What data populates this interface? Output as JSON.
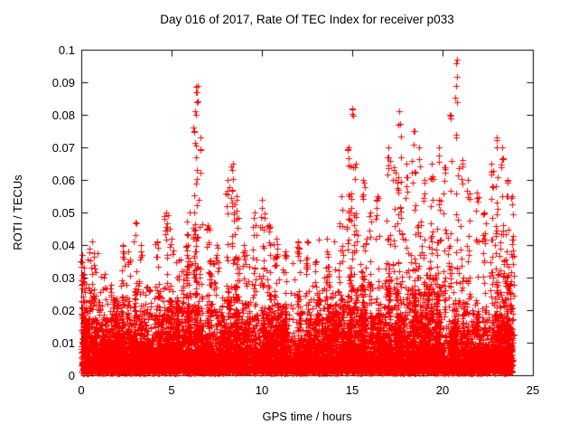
{
  "chart_data": {
    "type": "scatter",
    "title": "Day 016 of 2017, Rate Of TEC Index for receiver p033",
    "xlabel": "GPS time / hours",
    "ylabel": "ROTI / TECUs",
    "xlim": [
      0,
      25
    ],
    "ylim": [
      0,
      0.1
    ],
    "x_ticks": [
      0,
      5,
      10,
      15,
      20,
      25
    ],
    "y_ticks": [
      0,
      0.01,
      0.02,
      0.03,
      0.04,
      0.05,
      0.06,
      0.07,
      0.08,
      0.09,
      0.1
    ],
    "grid": false,
    "legend": "none",
    "marker": "+",
    "marker_color": "#ff0000",
    "axis_color": "#000000",
    "background": "#ffffff",
    "x_data_range": [
      0,
      23.9
    ],
    "baseline_band": {
      "description": "dense band of ROTI values between 0 and ~0.03 TECUs across all 24 hours, densest below 0.015",
      "y_floor": 0.0,
      "y_typical_max": 0.03
    },
    "spikes": [
      {
        "x": 0.05,
        "y": 0.037
      },
      {
        "x": 0.15,
        "y": 0.031
      },
      {
        "x": 2.3,
        "y": 0.04
      },
      {
        "x": 2.6,
        "y": 0.038
      },
      {
        "x": 3.0,
        "y": 0.047
      },
      {
        "x": 3.3,
        "y": 0.04
      },
      {
        "x": 4.2,
        "y": 0.041
      },
      {
        "x": 4.7,
        "y": 0.05
      },
      {
        "x": 5.0,
        "y": 0.042
      },
      {
        "x": 5.9,
        "y": 0.04
      },
      {
        "x": 6.3,
        "y": 0.081
      },
      {
        "x": 6.45,
        "y": 0.089
      },
      {
        "x": 6.6,
        "y": 0.073
      },
      {
        "x": 7.0,
        "y": 0.046
      },
      {
        "x": 7.5,
        "y": 0.04
      },
      {
        "x": 8.1,
        "y": 0.06
      },
      {
        "x": 8.4,
        "y": 0.065
      },
      {
        "x": 8.6,
        "y": 0.055
      },
      {
        "x": 9.0,
        "y": 0.04
      },
      {
        "x": 9.6,
        "y": 0.05
      },
      {
        "x": 10.0,
        "y": 0.054
      },
      {
        "x": 10.4,
        "y": 0.046
      },
      {
        "x": 10.8,
        "y": 0.042
      },
      {
        "x": 11.3,
        "y": 0.038
      },
      {
        "x": 12.0,
        "y": 0.041
      },
      {
        "x": 12.5,
        "y": 0.036
      },
      {
        "x": 13.0,
        "y": 0.035
      },
      {
        "x": 13.6,
        "y": 0.038
      },
      {
        "x": 14.4,
        "y": 0.055
      },
      {
        "x": 14.8,
        "y": 0.07
      },
      {
        "x": 15.0,
        "y": 0.082
      },
      {
        "x": 15.2,
        "y": 0.065
      },
      {
        "x": 15.6,
        "y": 0.06
      },
      {
        "x": 16.0,
        "y": 0.05
      },
      {
        "x": 16.4,
        "y": 0.055
      },
      {
        "x": 17.0,
        "y": 0.07
      },
      {
        "x": 17.3,
        "y": 0.064
      },
      {
        "x": 17.6,
        "y": 0.081
      },
      {
        "x": 18.0,
        "y": 0.065
      },
      {
        "x": 18.4,
        "y": 0.075
      },
      {
        "x": 18.7,
        "y": 0.07
      },
      {
        "x": 19.0,
        "y": 0.06
      },
      {
        "x": 19.4,
        "y": 0.065
      },
      {
        "x": 19.8,
        "y": 0.07
      },
      {
        "x": 20.1,
        "y": 0.064
      },
      {
        "x": 20.4,
        "y": 0.08
      },
      {
        "x": 20.8,
        "y": 0.097
      },
      {
        "x": 21.1,
        "y": 0.066
      },
      {
        "x": 21.4,
        "y": 0.06
      },
      {
        "x": 21.9,
        "y": 0.056
      },
      {
        "x": 22.3,
        "y": 0.05
      },
      {
        "x": 22.7,
        "y": 0.065
      },
      {
        "x": 23.0,
        "y": 0.073
      },
      {
        "x": 23.3,
        "y": 0.07
      },
      {
        "x": 23.6,
        "y": 0.06
      },
      {
        "x": 23.85,
        "y": 0.055
      }
    ]
  }
}
